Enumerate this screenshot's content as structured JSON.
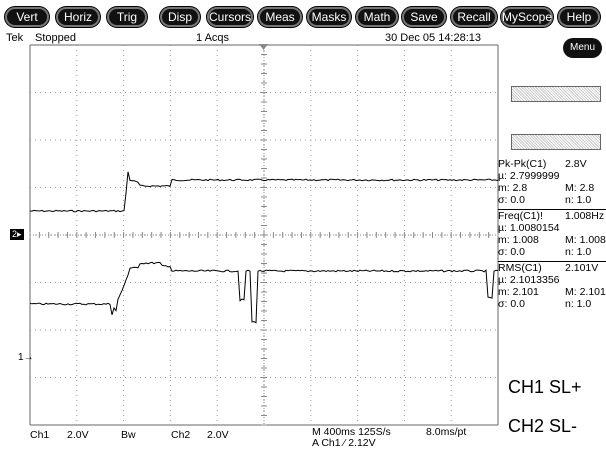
{
  "menu": {
    "items": [
      "Vert",
      "Horiz",
      "Trig",
      "Disp",
      "Cursors",
      "Meas",
      "Masks",
      "Math",
      "Save",
      "Recall",
      "MyScope",
      "Help"
    ]
  },
  "status": {
    "brand": "Tek",
    "state": "Stopped",
    "acqs": "1 Acqs",
    "datetime": "30 Dec 05 14:28:13"
  },
  "menu_button": "Menu",
  "channel_markers": {
    "ch2": "2",
    "ch1": "1"
  },
  "measurements": [
    {
      "name": "Pk-Pk(C1)",
      "value": "2.8V",
      "mean": "µ: 2.7999999",
      "min": "m: 2.8",
      "max": "M: 2.8",
      "sigma": "σ: 0.0",
      "n": "n: 1.0"
    },
    {
      "name": "Freq(C1)!",
      "value": "1.008Hz",
      "mean": "µ: 1.0080154",
      "min": "m: 1.008",
      "max": "M: 1.008",
      "sigma": "σ: 0.0",
      "n": "n: 1.0"
    },
    {
      "name": "RMS(C1)",
      "value": "2.101V",
      "mean": "µ: 2.1013356",
      "min": "m: 2.101",
      "max": "M: 2.101",
      "sigma": "σ: 0.0",
      "n": "n: 1.0"
    }
  ],
  "labels": {
    "ch1_note": "CH1 SL+",
    "ch2_note": "CH2 SL-"
  },
  "bottom": {
    "ch1": "Ch1",
    "ch1_scale": "2.0V",
    "bw": "Bw",
    "ch2": "Ch2",
    "ch2_scale": "2.0V",
    "timebase": "M 400ms 125S/s",
    "trigger": "A Ch1 ⁄ 2.12V",
    "resolution": "8.0ms/pt"
  }
}
